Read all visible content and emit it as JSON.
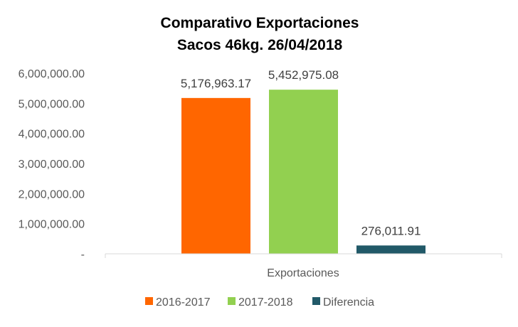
{
  "chart_data": {
    "type": "bar",
    "title": [
      "Comparativo  Exportaciones",
      "Sacos 46kg. 26/04/2018"
    ],
    "categories": [
      "Exportaciones"
    ],
    "series": [
      {
        "name": "2016-2017",
        "values": [
          5176963.17
        ],
        "label": "5,176,963.17",
        "color": "#FF6600"
      },
      {
        "name": "2017-2018",
        "values": [
          5452975.08
        ],
        "label": "5,452,975.08",
        "color": "#92D050"
      },
      {
        "name": "Diferencia",
        "values": [
          276011.91
        ],
        "label": "276,011.91",
        "color": "#215968"
      }
    ],
    "y_ticks": [
      {
        "value": 0,
        "label": "-"
      },
      {
        "value": 1000000,
        "label": "1,000,000.00"
      },
      {
        "value": 2000000,
        "label": "2,000,000.00"
      },
      {
        "value": 3000000,
        "label": "3,000,000.00"
      },
      {
        "value": 4000000,
        "label": "4,000,000.00"
      },
      {
        "value": 5000000,
        "label": "5,000,000.00"
      },
      {
        "value": 6000000,
        "label": "6,000,000.00"
      }
    ],
    "ylim": [
      0,
      6000000
    ],
    "grid": false,
    "legend": "bottom-center"
  }
}
